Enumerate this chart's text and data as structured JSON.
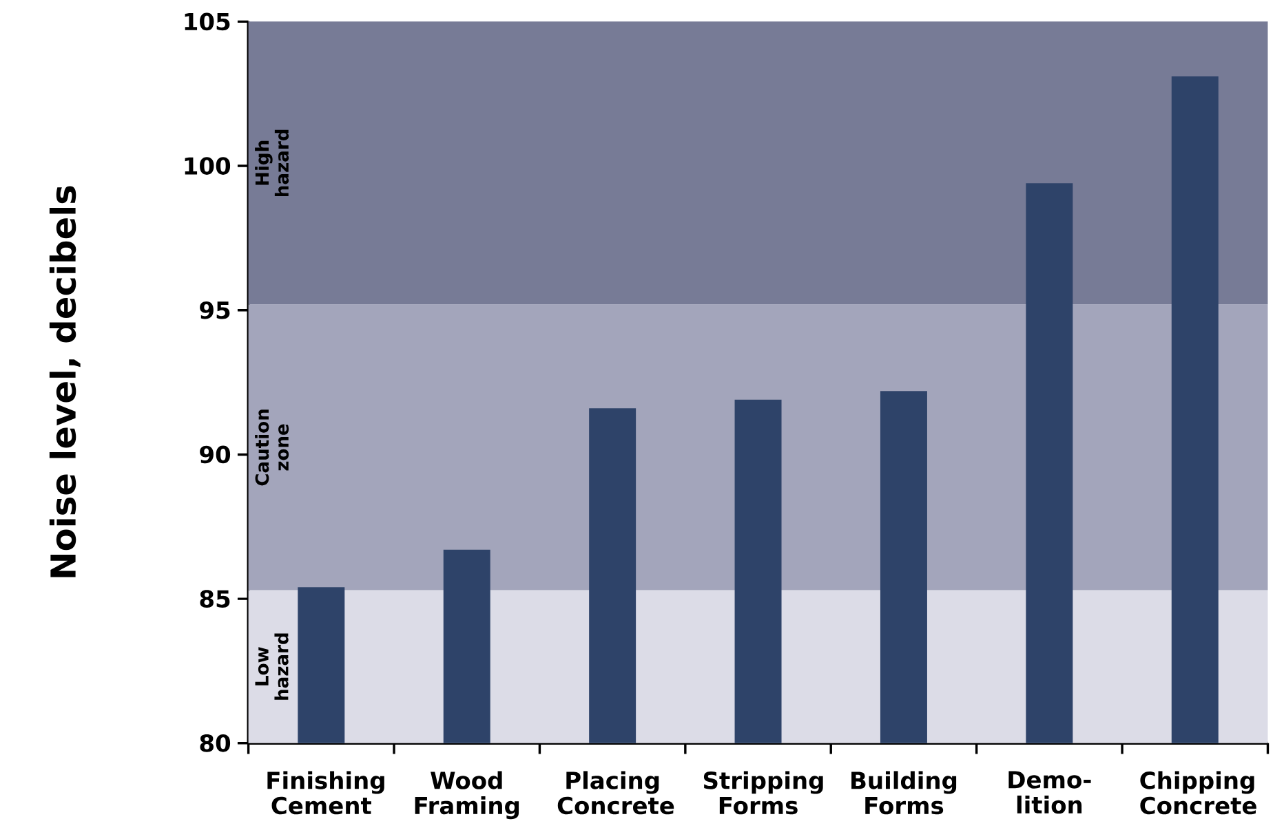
{
  "chart_data": {
    "type": "bar",
    "ylabel": "Noise level, decibels",
    "categories": [
      "Finishing Cement",
      "Wood Framing",
      "Placing Concrete",
      "Stripping Forms",
      "Building Forms",
      "Demo-lition",
      "Chipping Concrete"
    ],
    "values": [
      85.4,
      86.7,
      91.6,
      91.9,
      92.2,
      99.4,
      103.1
    ],
    "color": "#2e4369",
    "ylim": [
      80,
      105
    ],
    "yticks": [
      80,
      85,
      90,
      95,
      100,
      105
    ],
    "bands": [
      {
        "axis": "y",
        "from": 80,
        "to": 85.3,
        "label": "Low hazard",
        "color": "#dcdce7"
      },
      {
        "axis": "y",
        "from": 85.3,
        "to": 95.2,
        "label": "Caution zone",
        "color": "#a3a5bb"
      },
      {
        "axis": "y",
        "from": 95.2,
        "to": 105,
        "label": "High hazard",
        "color": "#777b96"
      }
    ]
  }
}
